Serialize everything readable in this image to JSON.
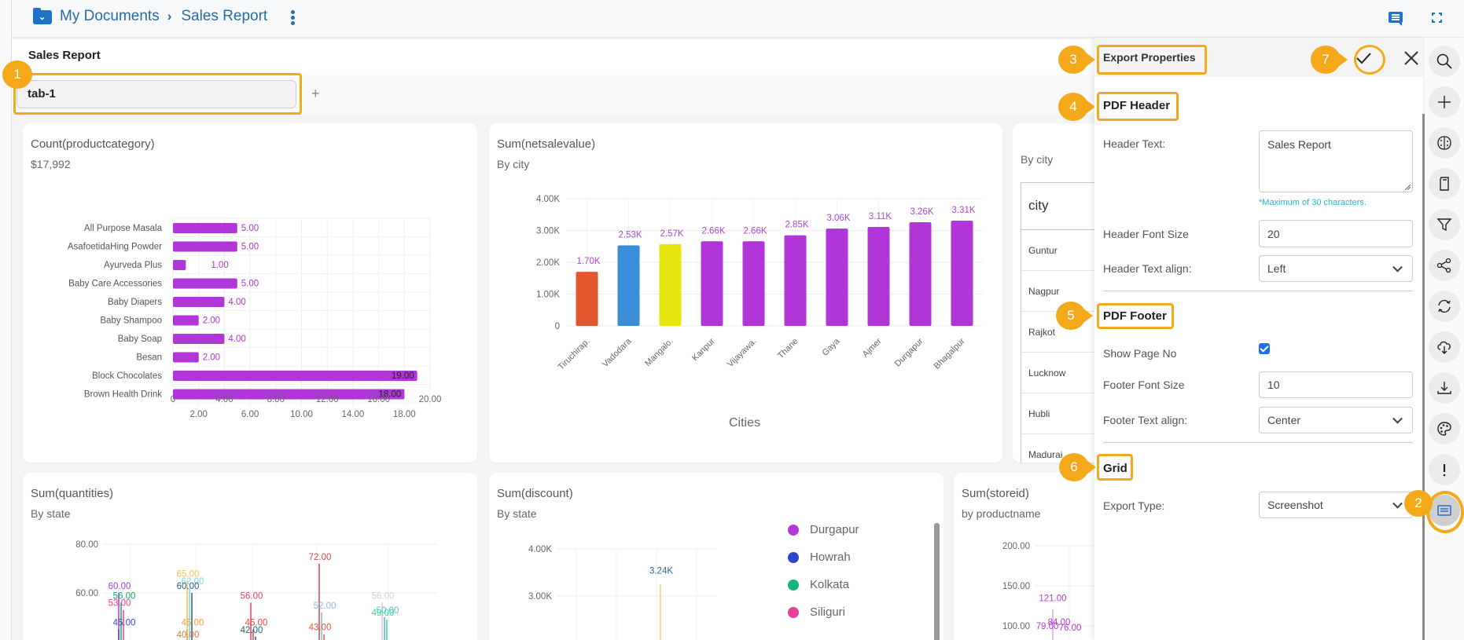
{
  "topbar": {
    "breadcrumb_root": "My Documents",
    "breadcrumb_current": "Sales Report",
    "icons": [
      "folder-icon",
      "chevron-right-icon",
      "more-vertical-icon",
      "comment-icon",
      "fullscreen-icon"
    ]
  },
  "report": {
    "title": "Sales Report",
    "tabs": [
      {
        "label": "tab-1"
      }
    ],
    "add_tab_label": "+"
  },
  "charts": {
    "productcategory": {
      "title": "Count(productcategory)",
      "kpi": "$17,992"
    },
    "netsale": {
      "title": "Sum(netsalevalue)",
      "subtitle": "By city"
    },
    "citytable": {
      "subtitle": "By city",
      "header": "city",
      "rows": [
        "Guntur",
        "Nagpur",
        "Rajkot",
        "Lucknow",
        "Hubli",
        "Madurai"
      ]
    },
    "quantities": {
      "title": "Sum(quantities)",
      "subtitle": "By state"
    },
    "discount": {
      "title": "Sum(discount)",
      "subtitle": "By state",
      "legend": [
        {
          "label": "Durgapur",
          "color": "#b23ad6"
        },
        {
          "label": "Howrah",
          "color": "#2d46c8"
        },
        {
          "label": "Kolkata",
          "color": "#16b47c"
        },
        {
          "label": "Siliguri",
          "color": "#e83e9c"
        }
      ]
    },
    "storeid": {
      "title": "Sum(storeid)",
      "subtitle": "by productname"
    }
  },
  "chart_data": [
    {
      "type": "bar",
      "orientation": "horizontal",
      "title": "Count(productcategory)",
      "categories": [
        "All Purpose Masala",
        "AsafoetidaHing Powder",
        "Ayurveda Plus",
        "Baby Care Accessories",
        "Baby Diapers",
        "Baby Shampoo",
        "Baby Soap",
        "Besan",
        "Block Chocolates",
        "Brown Health Drink"
      ],
      "values": [
        5,
        5,
        1,
        5,
        4,
        2,
        4,
        2,
        19,
        18
      ],
      "labels": [
        "5.00",
        "5.00",
        "1.00",
        "5.00",
        "4.00",
        "2.00",
        "4.00",
        "2.00",
        "19.00",
        "18.00"
      ],
      "xlim": [
        0,
        20
      ],
      "xticks_top": [
        "0",
        "4.00",
        "8.00",
        "12.00",
        "16.00",
        "20.00"
      ],
      "xticks_bottom": [
        "2.00",
        "6.00",
        "10.00",
        "14.00",
        "18.00"
      ],
      "color": "#b036d8",
      "grid": true
    },
    {
      "type": "bar",
      "title": "Sum(netsalevalue)",
      "subtitle": "By city",
      "xlabel": "Cities",
      "categories": [
        "Tiruchirap.",
        "Vadodara",
        "Mangalo.",
        "Kanpur",
        "Vijayawa.",
        "Thane",
        "Gaya",
        "Ajmer",
        "Durgapur",
        "Bhagalpur"
      ],
      "values": [
        1700,
        2530,
        2570,
        2660,
        2660,
        2850,
        3060,
        3110,
        3260,
        3310
      ],
      "labels": [
        "1.70K",
        "2.53K",
        "2.57K",
        "2.66K",
        "2.66K",
        "2.85K",
        "3.06K",
        "3.11K",
        "3.26K",
        "3.31K"
      ],
      "colors": [
        "#e4572e",
        "#3a8ed8",
        "#e6e60e",
        "#b036d8",
        "#b036d8",
        "#b036d8",
        "#b036d8",
        "#b036d8",
        "#b036d8",
        "#b036d8"
      ],
      "ylim": [
        0,
        4000
      ],
      "yticks": [
        "0",
        "1.00K",
        "2.00K",
        "3.00K",
        "4.00K"
      ],
      "grid": true
    },
    {
      "type": "bar",
      "title": "Sum(quantities)",
      "subtitle": "By state",
      "yticks": [
        "60.00",
        "80.00"
      ],
      "ylim": [
        40,
        80
      ],
      "groups": [
        {
          "labels": [
            {
              "text": "60.00",
              "v": 60,
              "color": "#b23ad6"
            },
            {
              "text": "56.00",
              "v": 56,
              "color": "#16a36e"
            },
            {
              "text": "53.00",
              "v": 53,
              "color": "#e23fa4"
            },
            {
              "text": "45.00",
              "v": 45,
              "color": "#3a48c4"
            }
          ]
        },
        {
          "labels": [
            {
              "text": "65.00",
              "v": 65,
              "color": "#f4c24a"
            },
            {
              "text": "62.00",
              "v": 62,
              "color": "#7fd3ee"
            },
            {
              "text": "60.00",
              "v": 60,
              "color": "#22608e"
            },
            {
              "text": "45.00",
              "v": 45,
              "color": "#f2a43a"
            },
            {
              "text": "40.00",
              "v": 40,
              "color": "#e27a46"
            }
          ]
        },
        {
          "labels": [
            {
              "text": "56.00",
              "v": 56,
              "color": "#e23f6a"
            },
            {
              "text": "45.00",
              "v": 45,
              "color": "#e2483f"
            },
            {
              "text": "42.00",
              "v": 42,
              "color": "#1f5f8a"
            }
          ]
        },
        {
          "labels": [
            {
              "text": "72.00",
              "v": 72,
              "color": "#c94a4a"
            },
            {
              "text": "52.00",
              "v": 52,
              "color": "#8ab8da"
            },
            {
              "text": "43.00",
              "v": 43,
              "color": "#e2583f"
            }
          ]
        },
        {
          "labels": [
            {
              "text": "56.00",
              "v": 56,
              "color": "#d0d0d0"
            },
            {
              "text": "50.00",
              "v": 50,
              "color": "#6fa8dc"
            },
            {
              "text": "49.00",
              "v": 49,
              "color": "#2ee08c"
            }
          ]
        }
      ]
    },
    {
      "type": "bar",
      "title": "Sum(discount)",
      "subtitle": "By state",
      "yticks": [
        "3.00K",
        "4.00K"
      ],
      "ylim": [
        2000,
        4000
      ],
      "values": [
        3240
      ],
      "labels": [
        "3.24K"
      ],
      "legend": [
        "Durgapur",
        "Howrah",
        "Kolkata",
        "Siliguri"
      ],
      "legend_position": "right"
    },
    {
      "type": "bar",
      "title": "Sum(storeid)",
      "subtitle": "by productname",
      "yticks": [
        "100.00",
        "150.00",
        "200.00"
      ],
      "ylim": [
        100,
        200
      ],
      "labels": [
        "121.00",
        "79.00",
        "84.00",
        "76.00"
      ],
      "values": [
        121,
        79,
        84,
        76
      ]
    }
  ],
  "export_panel": {
    "title": "Export Properties",
    "pdf_header": {
      "section_title": "PDF Header",
      "header_text_label": "Header Text:",
      "header_text_value": "Sales Report",
      "hint": "*Maximum of 30 characters.",
      "font_size_label": "Header Font Size",
      "font_size_value": "20",
      "align_label": "Header Text align:",
      "align_value": "Left"
    },
    "pdf_footer": {
      "section_title": "PDF Footer",
      "show_page_no_label": "Show Page No",
      "show_page_no_checked": true,
      "font_size_label": "Footer Font Size",
      "font_size_value": "10",
      "align_label": "Footer Text align:",
      "align_value": "Center"
    },
    "grid": {
      "section_title": "Grid",
      "export_type_label": "Export Type:",
      "export_type_value": "Screenshot"
    }
  },
  "right_rail": {
    "icons": [
      "search-icon",
      "plus-icon",
      "brain-icon",
      "sd-card-icon",
      "filter-icon",
      "share-icon",
      "refresh-icon",
      "cloud-download-icon",
      "download-icon",
      "palette-icon",
      "info-exclamation-icon",
      "export-properties-icon"
    ]
  },
  "annotations": [
    "1",
    "2",
    "3",
    "4",
    "5",
    "6",
    "7"
  ],
  "colors": {
    "accent": "#1f73c6",
    "annotation": "#f4a91a",
    "bar_purple": "#b036d8"
  }
}
